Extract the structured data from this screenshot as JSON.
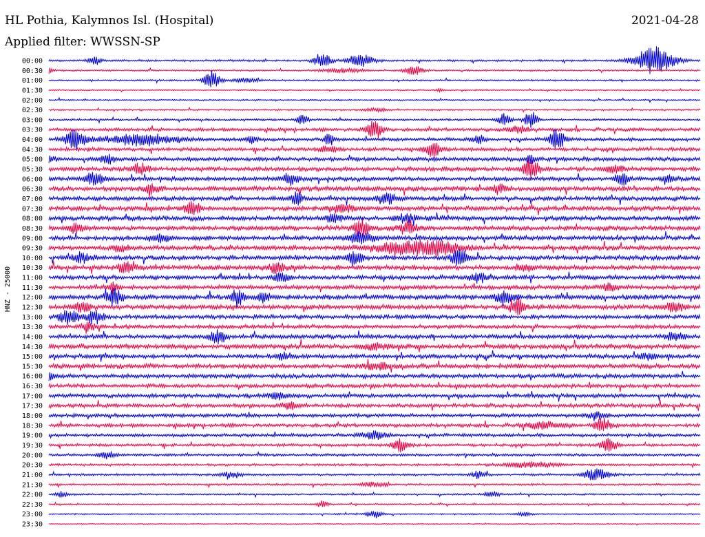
{
  "header": {
    "station": "HL Pothia, Kalymnos Isl. (Hospital)",
    "date": "2021-04-28",
    "filter": "Applied filter: WWSSN-SP"
  },
  "chart_data": {
    "type": "line",
    "title": "HL Pothia, Kalymnos Isl. (Hospital)",
    "ylabel": "HNZ - 25000",
    "trace_colors": [
      "#0000dd",
      "#ee0044"
    ],
    "rows": [
      {
        "time": "00:00",
        "events": [
          {
            "t": 0.07,
            "a": 5,
            "w": 0.01
          },
          {
            "t": 0.42,
            "a": 12,
            "w": 0.012
          },
          {
            "t": 0.48,
            "a": 9,
            "w": 0.02
          },
          {
            "t": 0.93,
            "a": 20,
            "w": 0.03
          }
        ],
        "noise": 1.2
      },
      {
        "time": "00:30",
        "events": [
          {
            "t": 0.0,
            "a": 4,
            "w": 0.005
          },
          {
            "t": 0.45,
            "a": 3,
            "w": 0.03
          },
          {
            "t": 0.56,
            "a": 6,
            "w": 0.015
          }
        ],
        "noise": 1.0
      },
      {
        "time": "01:00",
        "events": [
          {
            "t": 0.25,
            "a": 13,
            "w": 0.012
          },
          {
            "t": 0.3,
            "a": 3,
            "w": 0.02
          }
        ],
        "noise": 1.0
      },
      {
        "time": "01:30",
        "events": [
          {
            "t": 0.6,
            "a": 2,
            "w": 0.005
          }
        ],
        "noise": 0.8
      },
      {
        "time": "02:00",
        "events": [],
        "noise": 0.9
      },
      {
        "time": "02:30",
        "events": [
          {
            "t": 0.5,
            "a": 2,
            "w": 0.02
          }
        ],
        "noise": 1.0
      },
      {
        "time": "03:00",
        "events": [
          {
            "t": 0.39,
            "a": 8,
            "w": 0.008
          },
          {
            "t": 0.7,
            "a": 9,
            "w": 0.01
          },
          {
            "t": 0.74,
            "a": 12,
            "w": 0.01
          }
        ],
        "noise": 1.3
      },
      {
        "time": "03:30",
        "events": [
          {
            "t": 0.5,
            "a": 14,
            "w": 0.012
          },
          {
            "t": 0.72,
            "a": 5,
            "w": 0.015
          }
        ],
        "noise": 2.0
      },
      {
        "time": "04:00",
        "events": [
          {
            "t": 0.04,
            "a": 14,
            "w": 0.015
          },
          {
            "t": 0.14,
            "a": 8,
            "w": 0.06
          },
          {
            "t": 0.31,
            "a": 6,
            "w": 0.01
          },
          {
            "t": 0.43,
            "a": 8,
            "w": 0.008
          },
          {
            "t": 0.66,
            "a": 6,
            "w": 0.01
          },
          {
            "t": 0.78,
            "a": 14,
            "w": 0.012
          }
        ],
        "noise": 2.0
      },
      {
        "time": "04:30",
        "events": [
          {
            "t": 0.43,
            "a": 4,
            "w": 0.015
          },
          {
            "t": 0.59,
            "a": 11,
            "w": 0.012
          }
        ],
        "noise": 2.2
      },
      {
        "time": "05:00",
        "events": [
          {
            "t": 0.0,
            "a": 5,
            "w": 0.01
          },
          {
            "t": 0.09,
            "a": 6,
            "w": 0.012
          },
          {
            "t": 0.74,
            "a": 6,
            "w": 0.01
          }
        ],
        "noise": 2.4
      },
      {
        "time": "05:30",
        "events": [
          {
            "t": 0.14,
            "a": 8,
            "w": 0.012
          },
          {
            "t": 0.74,
            "a": 15,
            "w": 0.012
          },
          {
            "t": 0.87,
            "a": 5,
            "w": 0.015
          }
        ],
        "noise": 2.6
      },
      {
        "time": "06:00",
        "events": [
          {
            "t": 0.07,
            "a": 8,
            "w": 0.015
          },
          {
            "t": 0.37,
            "a": 8,
            "w": 0.012
          },
          {
            "t": 0.88,
            "a": 8,
            "w": 0.01
          },
          {
            "t": 0.95,
            "a": 8,
            "w": 0.008
          }
        ],
        "noise": 2.6
      },
      {
        "time": "06:30",
        "events": [
          {
            "t": 0.16,
            "a": 6,
            "w": 0.012
          },
          {
            "t": 0.69,
            "a": 6,
            "w": 0.012
          }
        ],
        "noise": 2.8
      },
      {
        "time": "07:00",
        "events": [
          {
            "t": 0.38,
            "a": 10,
            "w": 0.008
          },
          {
            "t": 0.52,
            "a": 8,
            "w": 0.015
          }
        ],
        "noise": 2.6
      },
      {
        "time": "07:30",
        "events": [
          {
            "t": 0.22,
            "a": 10,
            "w": 0.012
          },
          {
            "t": 0.45,
            "a": 5,
            "w": 0.02
          }
        ],
        "noise": 2.8
      },
      {
        "time": "08:00",
        "events": [
          {
            "t": 0.44,
            "a": 6,
            "w": 0.015
          },
          {
            "t": 0.55,
            "a": 6,
            "w": 0.015
          }
        ],
        "noise": 2.8
      },
      {
        "time": "08:30",
        "events": [
          {
            "t": 0.04,
            "a": 6,
            "w": 0.012
          },
          {
            "t": 0.48,
            "a": 12,
            "w": 0.012
          },
          {
            "t": 0.55,
            "a": 9,
            "w": 0.015
          }
        ],
        "noise": 2.8
      },
      {
        "time": "09:00",
        "events": [
          {
            "t": 0.17,
            "a": 6,
            "w": 0.015
          },
          {
            "t": 0.48,
            "a": 7,
            "w": 0.02
          }
        ],
        "noise": 2.8
      },
      {
        "time": "09:30",
        "events": [
          {
            "t": 0.11,
            "a": 5,
            "w": 0.01
          },
          {
            "t": 0.54,
            "a": 7,
            "w": 0.05
          },
          {
            "t": 0.6,
            "a": 8,
            "w": 0.04
          }
        ],
        "noise": 2.8
      },
      {
        "time": "10:00",
        "events": [
          {
            "t": 0.05,
            "a": 6,
            "w": 0.015
          },
          {
            "t": 0.47,
            "a": 10,
            "w": 0.012
          },
          {
            "t": 0.63,
            "a": 13,
            "w": 0.012
          }
        ],
        "noise": 2.8
      },
      {
        "time": "10:30",
        "events": [
          {
            "t": 0.12,
            "a": 8,
            "w": 0.012
          },
          {
            "t": 0.35,
            "a": 7,
            "w": 0.012
          },
          {
            "t": 0.73,
            "a": 6,
            "w": 0.012
          }
        ],
        "noise": 2.8
      },
      {
        "time": "11:00",
        "events": [
          {
            "t": 0.36,
            "a": 6,
            "w": 0.012
          },
          {
            "t": 0.66,
            "a": 6,
            "w": 0.015
          }
        ],
        "noise": 2.6
      },
      {
        "time": "11:30",
        "events": [
          {
            "t": 0.1,
            "a": 8,
            "w": 0.008
          },
          {
            "t": 0.86,
            "a": 6,
            "w": 0.012
          }
        ],
        "noise": 2.6
      },
      {
        "time": "12:00",
        "events": [
          {
            "t": 0.1,
            "a": 12,
            "w": 0.012
          },
          {
            "t": 0.29,
            "a": 12,
            "w": 0.01
          },
          {
            "t": 0.33,
            "a": 8,
            "w": 0.008
          },
          {
            "t": 0.7,
            "a": 10,
            "w": 0.015
          }
        ],
        "noise": 3.0
      },
      {
        "time": "12:30",
        "events": [
          {
            "t": 0.05,
            "a": 6,
            "w": 0.015
          },
          {
            "t": 0.72,
            "a": 10,
            "w": 0.012
          },
          {
            "t": 0.96,
            "a": 6,
            "w": 0.015
          }
        ],
        "noise": 2.8
      },
      {
        "time": "13:00",
        "events": [
          {
            "t": 0.03,
            "a": 10,
            "w": 0.015
          },
          {
            "t": 0.07,
            "a": 10,
            "w": 0.012
          }
        ],
        "noise": 2.6
      },
      {
        "time": "13:30",
        "events": [
          {
            "t": 0.06,
            "a": 5,
            "w": 0.012
          }
        ],
        "noise": 2.4
      },
      {
        "time": "14:00",
        "events": [
          {
            "t": 0.26,
            "a": 9,
            "w": 0.012
          },
          {
            "t": 0.96,
            "a": 5,
            "w": 0.015
          }
        ],
        "noise": 2.6
      },
      {
        "time": "14:30",
        "events": [
          {
            "t": 0.5,
            "a": 4,
            "w": 0.02
          }
        ],
        "noise": 2.8
      },
      {
        "time": "15:00",
        "events": [
          {
            "t": 0.36,
            "a": 5,
            "w": 0.012
          },
          {
            "t": 0.92,
            "a": 5,
            "w": 0.012
          }
        ],
        "noise": 2.6
      },
      {
        "time": "15:30",
        "events": [
          {
            "t": 0.5,
            "a": 4,
            "w": 0.02
          }
        ],
        "noise": 2.8
      },
      {
        "time": "16:00",
        "events": [
          {
            "t": 0.0,
            "a": 5,
            "w": 0.012
          }
        ],
        "noise": 2.6
      },
      {
        "time": "16:30",
        "events": [],
        "noise": 2.4
      },
      {
        "time": "17:00",
        "events": [
          {
            "t": 0.35,
            "a": 5,
            "w": 0.015
          }
        ],
        "noise": 2.4
      },
      {
        "time": "17:30",
        "events": [
          {
            "t": 0.37,
            "a": 4,
            "w": 0.015
          }
        ],
        "noise": 2.4
      },
      {
        "time": "18:00",
        "events": [
          {
            "t": 0.84,
            "a": 6,
            "w": 0.012
          }
        ],
        "noise": 2.2
      },
      {
        "time": "18:30",
        "events": [
          {
            "t": 0.85,
            "a": 10,
            "w": 0.012
          },
          {
            "t": 0.76,
            "a": 4,
            "w": 0.03
          }
        ],
        "noise": 2.2
      },
      {
        "time": "19:00",
        "events": [
          {
            "t": 0.5,
            "a": 5,
            "w": 0.02
          }
        ],
        "noise": 2.0
      },
      {
        "time": "19:30",
        "events": [
          {
            "t": 0.54,
            "a": 9,
            "w": 0.012
          },
          {
            "t": 0.86,
            "a": 10,
            "w": 0.012
          }
        ],
        "noise": 1.8
      },
      {
        "time": "20:00",
        "events": [
          {
            "t": 0.09,
            "a": 5,
            "w": 0.012
          }
        ],
        "noise": 1.6
      },
      {
        "time": "20:30",
        "events": [
          {
            "t": 0.74,
            "a": 4,
            "w": 0.04
          }
        ],
        "noise": 1.4
      },
      {
        "time": "21:00",
        "events": [
          {
            "t": 0.28,
            "a": 4,
            "w": 0.015
          },
          {
            "t": 0.66,
            "a": 6,
            "w": 0.01
          },
          {
            "t": 0.84,
            "a": 8,
            "w": 0.02
          }
        ],
        "noise": 1.4
      },
      {
        "time": "21:30",
        "events": [
          {
            "t": 0.5,
            "a": 3,
            "w": 0.02
          }
        ],
        "noise": 1.2
      },
      {
        "time": "22:00",
        "events": [
          {
            "t": 0.02,
            "a": 4,
            "w": 0.01
          },
          {
            "t": 0.68,
            "a": 4,
            "w": 0.012
          }
        ],
        "noise": 1.0
      },
      {
        "time": "22:30",
        "events": [
          {
            "t": 0.42,
            "a": 5,
            "w": 0.008
          }
        ],
        "noise": 0.9
      },
      {
        "time": "23:00",
        "events": [
          {
            "t": 0.5,
            "a": 5,
            "w": 0.012
          },
          {
            "t": 0.73,
            "a": 3,
            "w": 0.012
          }
        ],
        "noise": 0.8
      },
      {
        "time": "23:30",
        "events": [],
        "noise": 0.6
      }
    ]
  }
}
